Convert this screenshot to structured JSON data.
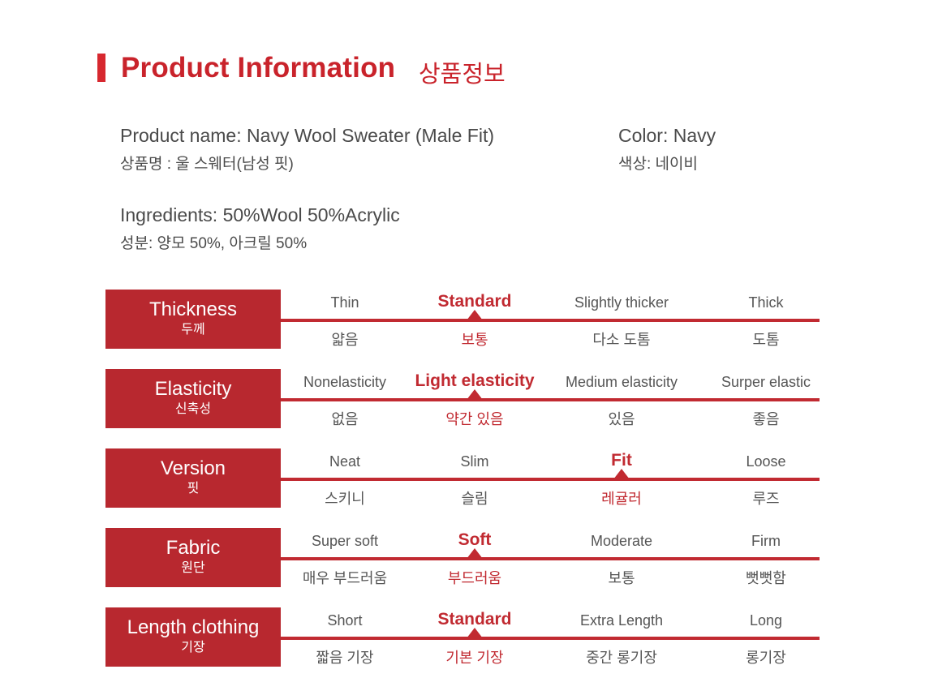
{
  "header": {
    "title_en": "Product Information",
    "title_ko": "상품정보",
    "accent_color": "#d7282f"
  },
  "product": {
    "name_en": "Product name: Navy Wool Sweater (Male Fit)",
    "name_ko": "상품명 : 울 스웨터(남성 핏)",
    "color_en": "Color: Navy",
    "color_ko": "색상: 네이비",
    "ingredients_en": "Ingredients: 50%Wool 50%Acrylic",
    "ingredients_ko": "성분: 양모 50%, 아크릴 50%"
  },
  "attributes": [
    {
      "label_en": "Thickness",
      "label_ko": "두께",
      "selected": 1,
      "options": [
        {
          "en": "Thin",
          "ko": "얇음"
        },
        {
          "en": "Standard",
          "ko": "보통"
        },
        {
          "en": "Slightly thicker",
          "ko": "다소 도톰"
        },
        {
          "en": "Thick",
          "ko": "도톰"
        }
      ]
    },
    {
      "label_en": "Elasticity",
      "label_ko": "신축성",
      "selected": 1,
      "options": [
        {
          "en": "Nonelasticity",
          "ko": "없음"
        },
        {
          "en": "Light elasticity",
          "ko": "약간 있음"
        },
        {
          "en": "Medium elasticity",
          "ko": "있음"
        },
        {
          "en": "Surper elastic",
          "ko": "좋음"
        }
      ]
    },
    {
      "label_en": "Version",
      "label_ko": "핏",
      "selected": 2,
      "options": [
        {
          "en": "Neat",
          "ko": "스키니"
        },
        {
          "en": "Slim",
          "ko": "슬림"
        },
        {
          "en": "Fit",
          "ko": "레귤러"
        },
        {
          "en": "Loose",
          "ko": "루즈"
        }
      ]
    },
    {
      "label_en": "Fabric",
      "label_ko": "원단",
      "selected": 1,
      "options": [
        {
          "en": "Super soft",
          "ko": "매우 부드러움"
        },
        {
          "en": "Soft",
          "ko": "부드러움"
        },
        {
          "en": "Moderate",
          "ko": "보통"
        },
        {
          "en": "Firm",
          "ko": "뻣뻣함"
        }
      ]
    },
    {
      "label_en": "Length clothing",
      "label_ko": "기장",
      "selected": 1,
      "options": [
        {
          "en": "Short",
          "ko": "짧음 기장"
        },
        {
          "en": "Standard",
          "ko": "기본 기장"
        },
        {
          "en": "Extra Length",
          "ko": "중간 롱기장"
        },
        {
          "en": "Long",
          "ko": "롱기장"
        }
      ]
    }
  ]
}
